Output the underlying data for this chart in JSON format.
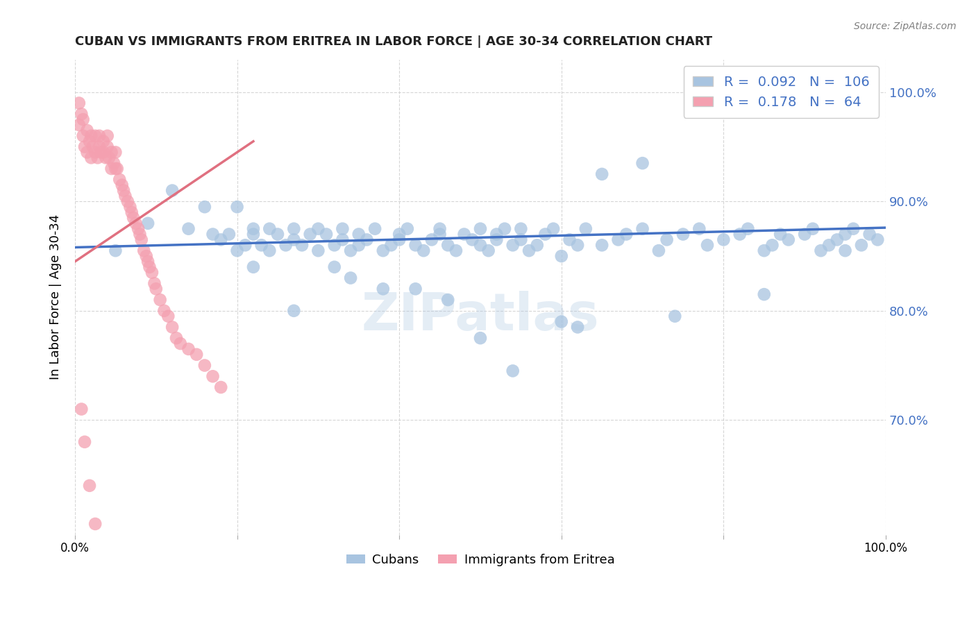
{
  "title": "CUBAN VS IMMIGRANTS FROM ERITREA IN LABOR FORCE | AGE 30-34 CORRELATION CHART",
  "source_text": "Source: ZipAtlas.com",
  "ylabel": "In Labor Force | Age 30-34",
  "xlim": [
    0.0,
    1.0
  ],
  "ylim": [
    0.595,
    1.03
  ],
  "x_ticks": [
    0.0,
    0.2,
    0.4,
    0.6,
    0.8,
    1.0
  ],
  "x_tick_labels": [
    "0.0%",
    "",
    "",
    "",
    "",
    "100.0%"
  ],
  "y_ticks_right": [
    1.0,
    0.9,
    0.8,
    0.7
  ],
  "y_tick_labels_right": [
    "100.0%",
    "90.0%",
    "80.0%",
    "70.0%"
  ],
  "grid_color": "#cccccc",
  "background_color": "#ffffff",
  "blue_color": "#a8c4e0",
  "pink_color": "#f4a0b0",
  "trendline_blue": "#4472c4",
  "trendline_pink": "#e07080",
  "legend_blue_R": "0.092",
  "legend_blue_N": "106",
  "legend_pink_R": "0.178",
  "legend_pink_N": "64",
  "watermark": "ZIPatlas",
  "legend_label_blue": "Cubans",
  "legend_label_pink": "Immigrants from Eritrea",
  "blue_scatter_x": [
    0.05,
    0.09,
    0.12,
    0.14,
    0.17,
    0.18,
    0.19,
    0.2,
    0.21,
    0.22,
    0.22,
    0.23,
    0.24,
    0.24,
    0.25,
    0.26,
    0.27,
    0.27,
    0.28,
    0.29,
    0.3,
    0.3,
    0.31,
    0.32,
    0.33,
    0.33,
    0.34,
    0.35,
    0.35,
    0.36,
    0.37,
    0.38,
    0.39,
    0.4,
    0.4,
    0.41,
    0.42,
    0.43,
    0.44,
    0.45,
    0.45,
    0.46,
    0.47,
    0.48,
    0.49,
    0.5,
    0.5,
    0.51,
    0.52,
    0.52,
    0.53,
    0.54,
    0.55,
    0.55,
    0.56,
    0.57,
    0.58,
    0.59,
    0.6,
    0.61,
    0.62,
    0.63,
    0.65,
    0.67,
    0.68,
    0.7,
    0.72,
    0.73,
    0.75,
    0.77,
    0.78,
    0.8,
    0.82,
    0.83,
    0.85,
    0.86,
    0.87,
    0.88,
    0.9,
    0.91,
    0.92,
    0.93,
    0.94,
    0.95,
    0.96,
    0.97,
    0.98,
    0.99,
    0.38,
    0.27,
    0.32,
    0.46,
    0.54,
    0.6,
    0.22,
    0.34,
    0.42,
    0.5,
    0.62,
    0.74,
    0.85,
    0.95,
    0.2,
    0.16,
    0.7,
    0.65
  ],
  "blue_scatter_y": [
    0.855,
    0.88,
    0.91,
    0.875,
    0.87,
    0.865,
    0.87,
    0.855,
    0.86,
    0.87,
    0.875,
    0.86,
    0.855,
    0.875,
    0.87,
    0.86,
    0.865,
    0.875,
    0.86,
    0.87,
    0.855,
    0.875,
    0.87,
    0.86,
    0.865,
    0.875,
    0.855,
    0.86,
    0.87,
    0.865,
    0.875,
    0.855,
    0.86,
    0.87,
    0.865,
    0.875,
    0.86,
    0.855,
    0.865,
    0.87,
    0.875,
    0.86,
    0.855,
    0.87,
    0.865,
    0.875,
    0.86,
    0.855,
    0.87,
    0.865,
    0.875,
    0.86,
    0.865,
    0.875,
    0.855,
    0.86,
    0.87,
    0.875,
    0.85,
    0.865,
    0.86,
    0.875,
    0.86,
    0.865,
    0.87,
    0.875,
    0.855,
    0.865,
    0.87,
    0.875,
    0.86,
    0.865,
    0.87,
    0.875,
    0.855,
    0.86,
    0.87,
    0.865,
    0.87,
    0.875,
    0.855,
    0.86,
    0.865,
    0.87,
    0.875,
    0.86,
    0.87,
    0.865,
    0.82,
    0.8,
    0.84,
    0.81,
    0.745,
    0.79,
    0.84,
    0.83,
    0.82,
    0.775,
    0.785,
    0.795,
    0.815,
    0.855,
    0.895,
    0.895,
    0.935,
    0.925
  ],
  "pink_scatter_x": [
    0.005,
    0.005,
    0.008,
    0.01,
    0.01,
    0.012,
    0.015,
    0.015,
    0.018,
    0.02,
    0.02,
    0.022,
    0.025,
    0.025,
    0.028,
    0.03,
    0.03,
    0.032,
    0.035,
    0.035,
    0.038,
    0.04,
    0.04,
    0.042,
    0.045,
    0.045,
    0.048,
    0.05,
    0.05,
    0.052,
    0.055,
    0.058,
    0.06,
    0.062,
    0.065,
    0.068,
    0.07,
    0.072,
    0.075,
    0.078,
    0.08,
    0.082,
    0.085,
    0.088,
    0.09,
    0.092,
    0.095,
    0.098,
    0.1,
    0.105,
    0.11,
    0.115,
    0.12,
    0.125,
    0.13,
    0.14,
    0.15,
    0.16,
    0.17,
    0.18,
    0.008,
    0.012,
    0.018,
    0.025
  ],
  "pink_scatter_y": [
    0.97,
    0.99,
    0.98,
    0.96,
    0.975,
    0.95,
    0.965,
    0.945,
    0.955,
    0.94,
    0.96,
    0.95,
    0.945,
    0.96,
    0.94,
    0.95,
    0.96,
    0.945,
    0.945,
    0.955,
    0.94,
    0.95,
    0.96,
    0.94,
    0.93,
    0.945,
    0.935,
    0.93,
    0.945,
    0.93,
    0.92,
    0.915,
    0.91,
    0.905,
    0.9,
    0.895,
    0.89,
    0.885,
    0.88,
    0.875,
    0.87,
    0.865,
    0.855,
    0.85,
    0.845,
    0.84,
    0.835,
    0.825,
    0.82,
    0.81,
    0.8,
    0.795,
    0.785,
    0.775,
    0.77,
    0.765,
    0.76,
    0.75,
    0.74,
    0.73,
    0.71,
    0.68,
    0.64,
    0.605
  ]
}
